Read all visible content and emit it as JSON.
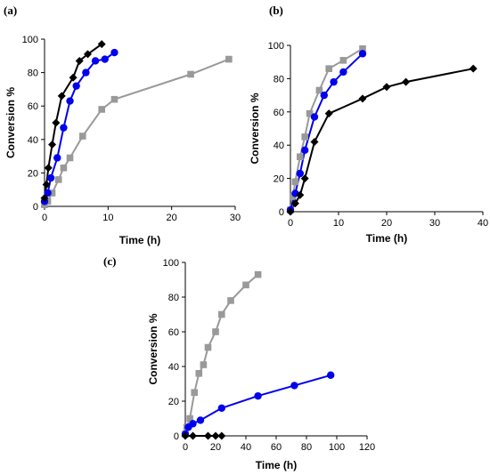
{
  "chart_data": [
    {
      "panel_label": "(a)",
      "type": "line",
      "xlabel": "Time (h)",
      "ylabel": "Conversion %",
      "xlim": [
        0,
        30
      ],
      "ylim": [
        0,
        100
      ],
      "xticks": [
        0,
        10,
        20,
        30
      ],
      "yticks": [
        0,
        20,
        40,
        60,
        80,
        100
      ],
      "grid": false,
      "series": [
        {
          "color": "#000000",
          "marker": "diamond",
          "x": [
            0,
            0.3,
            0.6,
            1.2,
            1.8,
            2.7,
            4.5,
            5.5,
            6.8,
            9.0
          ],
          "y": [
            5,
            13,
            23,
            37,
            50,
            66,
            77,
            87,
            91,
            97
          ]
        },
        {
          "color": "#0000ee",
          "marker": "circle",
          "x": [
            0,
            0.5,
            1.0,
            2.0,
            3.0,
            4.0,
            5.0,
            6.5,
            8.0,
            9.5,
            11.0
          ],
          "y": [
            3,
            8,
            17,
            29,
            47,
            63,
            72,
            80,
            87,
            88,
            92
          ]
        },
        {
          "color": "#999999",
          "marker": "square",
          "x": [
            0,
            0.5,
            1.2,
            2.2,
            3.0,
            4.0,
            6.0,
            9.0,
            11.0,
            23.0,
            29.0
          ],
          "y": [
            1,
            3,
            8,
            16,
            23,
            29,
            42,
            58,
            64,
            79,
            88
          ]
        }
      ]
    },
    {
      "panel_label": "(b)",
      "type": "line",
      "xlabel": "Time (h)",
      "ylabel": "Conversion %",
      "xlim": [
        0,
        40
      ],
      "ylim": [
        0,
        100
      ],
      "xticks": [
        0,
        10,
        20,
        30,
        40
      ],
      "yticks": [
        0,
        20,
        40,
        60,
        80,
        100
      ],
      "grid": false,
      "series": [
        {
          "color": "#000000",
          "marker": "diamond",
          "x": [
            0,
            1,
            2,
            3,
            5,
            8,
            15,
            20,
            24,
            38
          ],
          "y": [
            0,
            5,
            10,
            20,
            42,
            59,
            68,
            75,
            78,
            86
          ]
        },
        {
          "color": "#0000ee",
          "marker": "circle",
          "x": [
            0,
            1,
            2,
            3,
            5,
            7,
            9,
            11,
            15
          ],
          "y": [
            1,
            11,
            23,
            37,
            57,
            70,
            78,
            84,
            95
          ]
        },
        {
          "color": "#999999",
          "marker": "square",
          "x": [
            0,
            0.5,
            1,
            2,
            3,
            4,
            6,
            8,
            11,
            15
          ],
          "y": [
            1,
            9,
            18,
            33,
            45,
            59,
            73,
            86,
            91,
            98
          ]
        }
      ]
    },
    {
      "panel_label": "(c)",
      "type": "line",
      "xlabel": "Time (h)",
      "ylabel": "Conversion %",
      "xlim": [
        0,
        120
      ],
      "ylim": [
        0,
        100
      ],
      "xticks": [
        0,
        20,
        40,
        60,
        80,
        100,
        120
      ],
      "yticks": [
        0,
        20,
        40,
        60,
        80,
        100
      ],
      "grid": false,
      "series": [
        {
          "color": "#000000",
          "marker": "diamond",
          "x": [
            0,
            5,
            15,
            20,
            24
          ],
          "y": [
            0,
            0,
            0,
            0,
            0
          ]
        },
        {
          "color": "#0000ee",
          "marker": "circle",
          "x": [
            0,
            2,
            5,
            10,
            24,
            48,
            72,
            96
          ],
          "y": [
            1,
            5,
            7,
            9,
            16,
            23,
            29,
            35
          ]
        },
        {
          "color": "#999999",
          "marker": "square",
          "x": [
            0,
            1,
            3,
            6,
            9,
            12,
            15,
            20,
            24,
            30,
            40,
            48
          ],
          "y": [
            1,
            5,
            10,
            25,
            36,
            41,
            51,
            60,
            70,
            78,
            87,
            93
          ]
        }
      ]
    }
  ]
}
